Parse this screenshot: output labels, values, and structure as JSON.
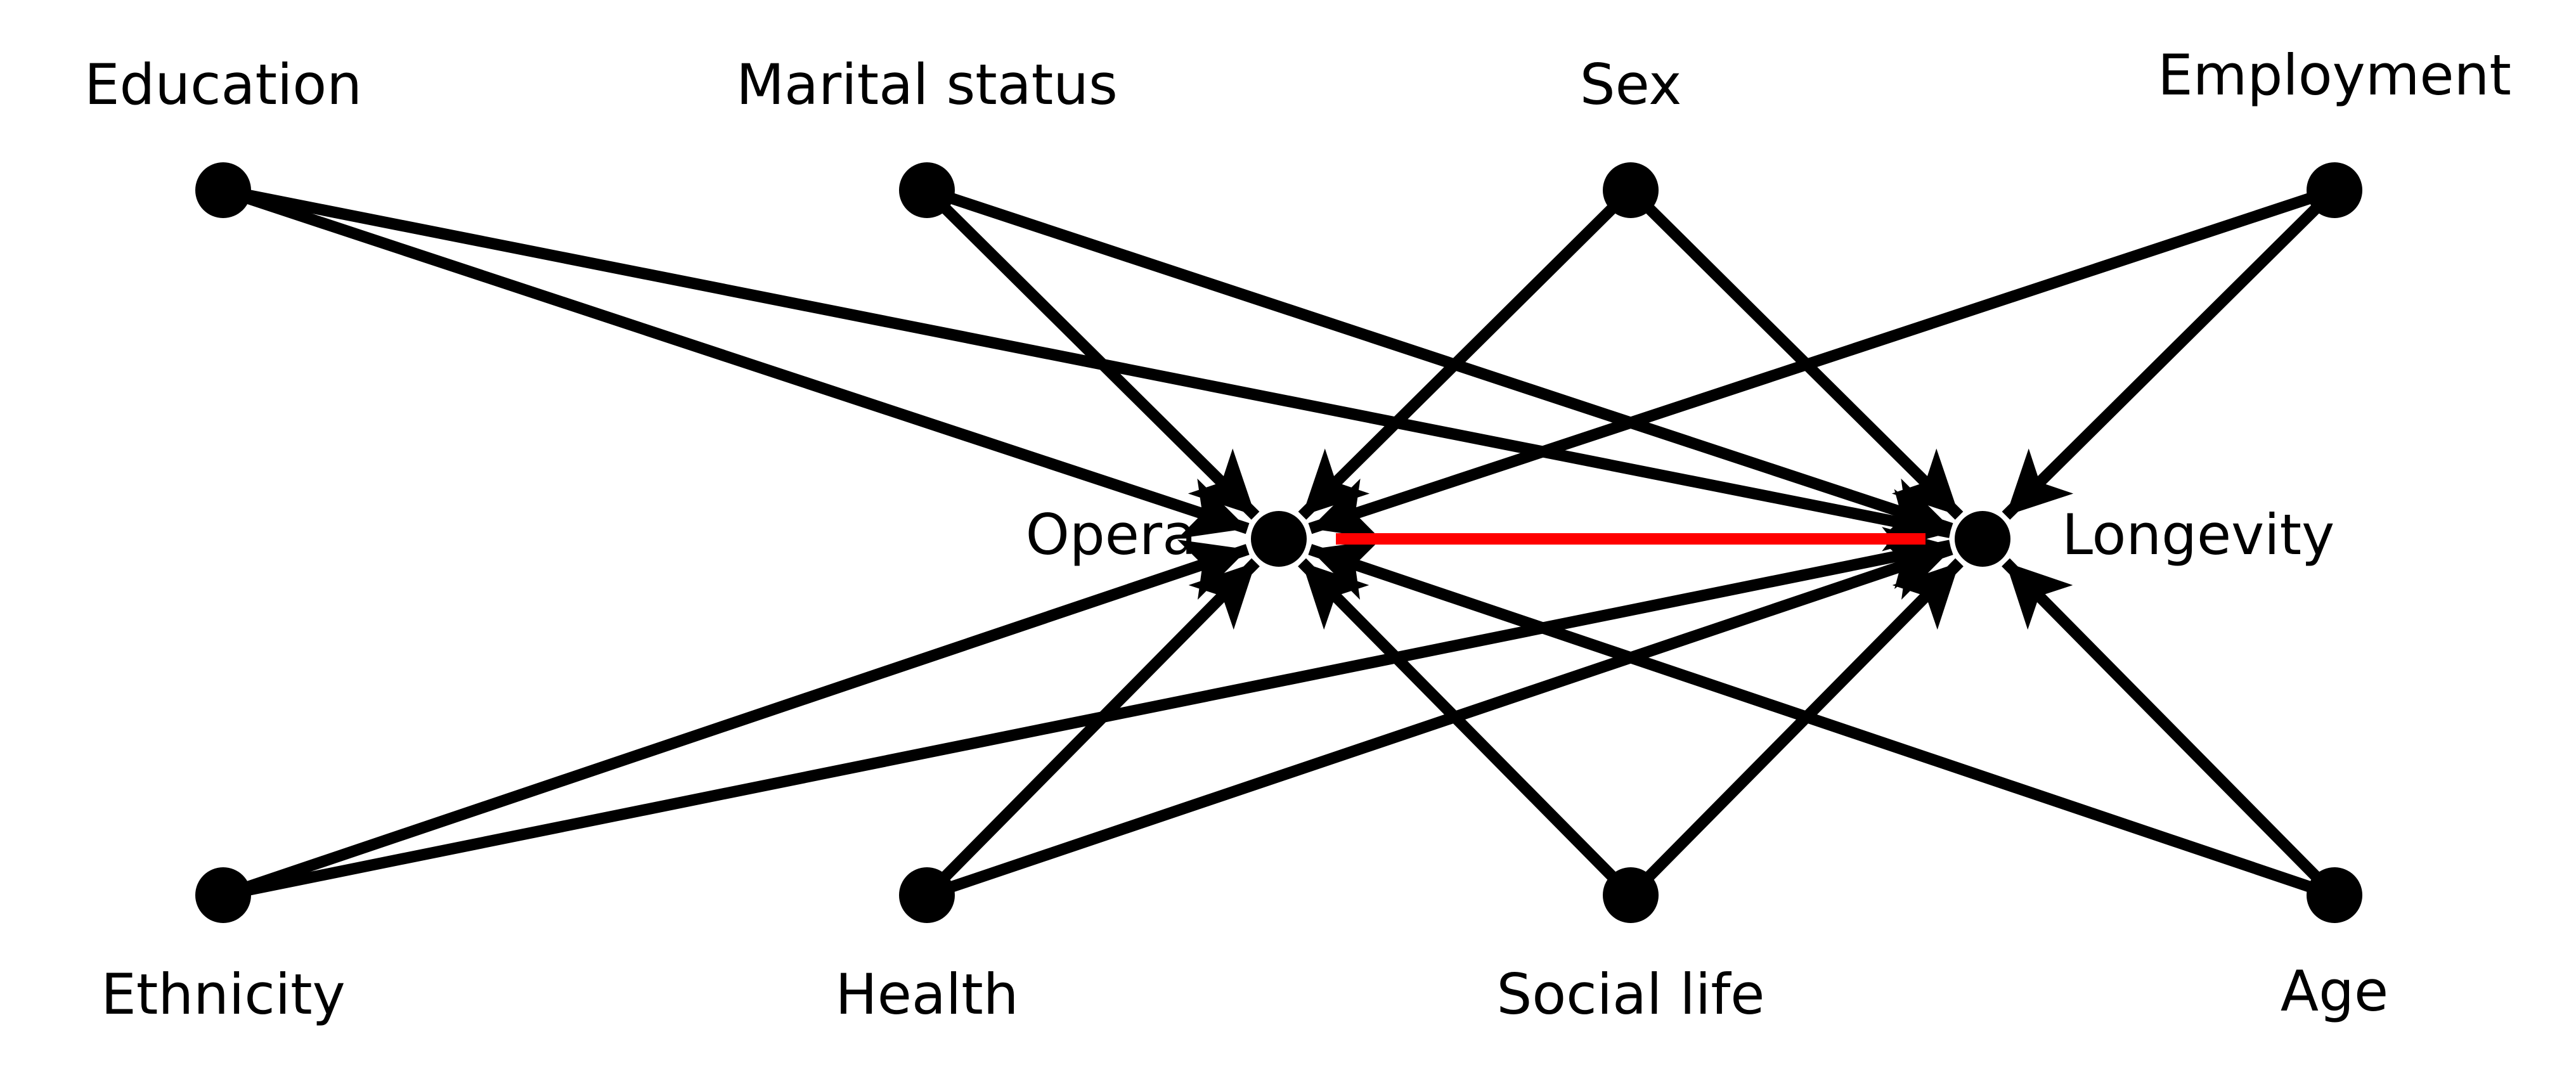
{
  "colors": {
    "edge": "#000000",
    "highlight": "#ff0000",
    "node": "#000000",
    "background": "#ffffff"
  },
  "nodes": [
    {
      "id": "education",
      "label": "Education"
    },
    {
      "id": "marital",
      "label": "Marital status"
    },
    {
      "id": "sex",
      "label": "Sex"
    },
    {
      "id": "employment",
      "label": "Employment"
    },
    {
      "id": "opera",
      "label": "Opera"
    },
    {
      "id": "longevity",
      "label": "Longevity"
    },
    {
      "id": "ethnicity",
      "label": "Ethnicity"
    },
    {
      "id": "health",
      "label": "Health"
    },
    {
      "id": "social",
      "label": "Social life"
    },
    {
      "id": "age",
      "label": "Age"
    }
  ],
  "edges": [
    {
      "from": "education",
      "to": "opera"
    },
    {
      "from": "education",
      "to": "longevity"
    },
    {
      "from": "marital",
      "to": "opera"
    },
    {
      "from": "marital",
      "to": "longevity"
    },
    {
      "from": "sex",
      "to": "opera"
    },
    {
      "from": "sex",
      "to": "longevity"
    },
    {
      "from": "employment",
      "to": "opera"
    },
    {
      "from": "employment",
      "to": "longevity"
    },
    {
      "from": "ethnicity",
      "to": "opera"
    },
    {
      "from": "ethnicity",
      "to": "longevity"
    },
    {
      "from": "health",
      "to": "opera"
    },
    {
      "from": "health",
      "to": "longevity"
    },
    {
      "from": "social",
      "to": "opera"
    },
    {
      "from": "social",
      "to": "longevity"
    },
    {
      "from": "age",
      "to": "opera"
    },
    {
      "from": "age",
      "to": "longevity"
    }
  ],
  "highlight_edge": {
    "from": "opera",
    "to": "longevity"
  }
}
